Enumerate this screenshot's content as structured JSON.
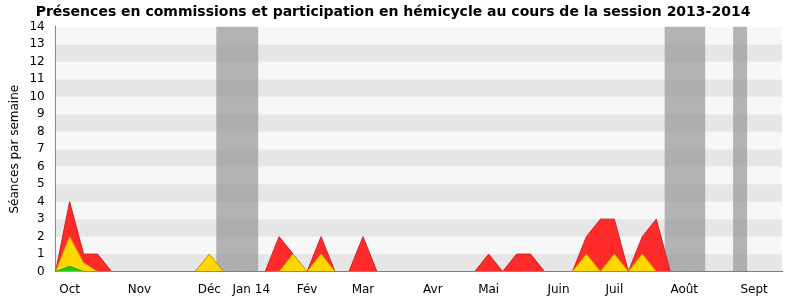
{
  "chart_data": {
    "type": "area",
    "title": "Présences en commissions et participation en hémicycle au cours de la session 2013-2014",
    "y_label": "Séances par semaine",
    "categories": [
      null,
      "Oct",
      null,
      null,
      null,
      null,
      "Nov",
      null,
      null,
      null,
      null,
      "Déc",
      null,
      null,
      "Jan 14",
      null,
      null,
      null,
      "Fév",
      null,
      null,
      null,
      "Mar",
      null,
      null,
      null,
      null,
      "Avr",
      null,
      null,
      null,
      "Mai",
      null,
      null,
      null,
      null,
      "Juin",
      null,
      null,
      null,
      "Juil",
      null,
      null,
      null,
      null,
      "Août",
      null,
      null,
      null,
      null,
      "Sept",
      null,
      null
    ],
    "series": [
      {
        "color": "#ff2a2a",
        "values": [
          0,
          4,
          1,
          1,
          0,
          0,
          0,
          0,
          0,
          0,
          0,
          1,
          0,
          0,
          0,
          0,
          2,
          1,
          0,
          2,
          0,
          0,
          2,
          0,
          0,
          0,
          0,
          0,
          0,
          0,
          0,
          1,
          0,
          1,
          1,
          0,
          0,
          0,
          2,
          3,
          3,
          0,
          2,
          3,
          0,
          0,
          0,
          0,
          0,
          0,
          0,
          0,
          0
        ]
      },
      {
        "color": "#ffd700",
        "values": [
          0,
          2,
          0.5,
          0,
          0,
          0,
          0,
          0,
          0,
          0,
          0,
          1,
          0,
          0,
          0,
          0,
          0,
          1,
          0,
          1,
          0,
          0,
          0,
          0,
          0,
          0,
          0,
          0,
          0,
          0,
          0,
          0,
          0,
          0,
          0,
          0,
          0,
          0,
          1,
          0,
          1,
          0,
          1,
          0,
          0,
          0,
          0,
          0,
          0,
          0,
          0,
          0,
          0
        ]
      },
      {
        "color": "#22cc00",
        "values": [
          0,
          0.3,
          0,
          0,
          0,
          0,
          0,
          0,
          0,
          0,
          0,
          0,
          0,
          0,
          0,
          0,
          0,
          0,
          0,
          0,
          0,
          0,
          0,
          0,
          0,
          0,
          0,
          0,
          0,
          0,
          0,
          0,
          0,
          0,
          0,
          0,
          0,
          0,
          0,
          0,
          0,
          0,
          0,
          0,
          0,
          0,
          0,
          0,
          0,
          0,
          0,
          0,
          0
        ]
      }
    ],
    "shaded_periods": [
      [
        11.5,
        14.5
      ],
      [
        43.6,
        46.5
      ],
      [
        48.5,
        49.5
      ]
    ],
    "ylim": [
      0,
      14
    ],
    "yticks": [
      0,
      1,
      2,
      3,
      4,
      5,
      6,
      7,
      8,
      9,
      10,
      11,
      12,
      13,
      14
    ],
    "grid": true
  }
}
